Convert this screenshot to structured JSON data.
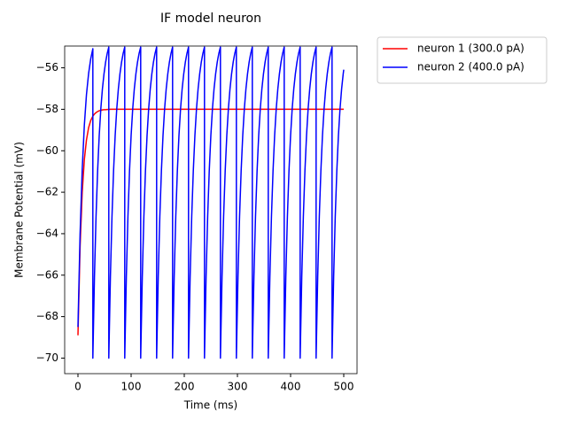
{
  "chart_data": {
    "type": "line",
    "title": "IF model neuron",
    "x_label": "Time (ms)",
    "y_label": "Membrane Potential (mV)",
    "xlim": [
      -25,
      525
    ],
    "ylim": [
      -70.75,
      -54.95
    ],
    "xticks": [
      0,
      100,
      200,
      300,
      400,
      500
    ],
    "yticks": [
      {
        "value": -70,
        "label": "−70"
      },
      {
        "value": -68,
        "label": "−68"
      },
      {
        "value": -66,
        "label": "−66"
      },
      {
        "value": -64,
        "label": "−64"
      },
      {
        "value": -62,
        "label": "−62"
      },
      {
        "value": -60,
        "label": "−60"
      },
      {
        "value": -58,
        "label": "−58"
      },
      {
        "value": -56,
        "label": "−56"
      }
    ],
    "grid": false,
    "legend": "outside upper right",
    "x": [
      0,
      4,
      8,
      12,
      16,
      20,
      24,
      28,
      28,
      31,
      34,
      37,
      40,
      43,
      46,
      49,
      52,
      55,
      58,
      58,
      61,
      64,
      67,
      70,
      73,
      76,
      79,
      82,
      85,
      88,
      88,
      91,
      94,
      97,
      100,
      103,
      106,
      109,
      112,
      115,
      118,
      118,
      121,
      124,
      127,
      130,
      133,
      136,
      139,
      142,
      145,
      148,
      148,
      151,
      154,
      157,
      160,
      163,
      166,
      169,
      172,
      175,
      178,
      178,
      181,
      184,
      187,
      190,
      193,
      196,
      199,
      202,
      205,
      208,
      208,
      211,
      214,
      217,
      220,
      223,
      226,
      229,
      232,
      235,
      238,
      238,
      241,
      244,
      247,
      250,
      253,
      256,
      259,
      262,
      265,
      268,
      268,
      271,
      274,
      277,
      280,
      283,
      286,
      289,
      292,
      295,
      298,
      298,
      301,
      304,
      307,
      310,
      313,
      316,
      319,
      322,
      325,
      328,
      328,
      331,
      334,
      337,
      340,
      343,
      346,
      349,
      352,
      355,
      358,
      358,
      361,
      364,
      367,
      370,
      373,
      376,
      379,
      382,
      385,
      388,
      388,
      391,
      394,
      397,
      400,
      403,
      406,
      409,
      412,
      415,
      418,
      418,
      421,
      424,
      427,
      430,
      433,
      436,
      439,
      442,
      445,
      448,
      448,
      451,
      454,
      457,
      460,
      463,
      466,
      469,
      472,
      475,
      478,
      478,
      481,
      484,
      487,
      490,
      493,
      496,
      499,
      500
    ],
    "series": [
      {
        "name": "neuron 1 (300.0 pA)",
        "color": "#ff0000",
        "values": [
          -68.9,
          -64.61,
          -62.01,
          -60.43,
          -59.48,
          -58.89,
          -58.54,
          -58.33,
          -58.33,
          -58.23,
          -58.16,
          -58.11,
          -58.07,
          -58.05,
          -58.03,
          -58.02,
          -58.02,
          -58.01,
          -58.01,
          -58.01,
          -58,
          -58,
          -58,
          -58,
          -58,
          -58,
          -58,
          -58,
          -58,
          -58,
          -58,
          -58,
          -58,
          -58,
          -58,
          -58,
          -58,
          -58,
          -58,
          -58,
          -58,
          -58,
          -58,
          -58,
          -58,
          -58,
          -58,
          -58,
          -58,
          -58,
          -58,
          -58,
          -58,
          -58,
          -58,
          -58,
          -58,
          -58,
          -58,
          -58,
          -58,
          -58,
          -58,
          -58,
          -58,
          -58,
          -58,
          -58,
          -58,
          -58,
          -58,
          -58,
          -58,
          -58,
          -58,
          -58,
          -58,
          -58,
          -58,
          -58,
          -58,
          -58,
          -58,
          -58,
          -58,
          -58,
          -58,
          -58,
          -58,
          -58,
          -58,
          -58,
          -58,
          -58,
          -58,
          -58,
          -58,
          -58,
          -58,
          -58,
          -58,
          -58,
          -58,
          -58,
          -58,
          -58,
          -58,
          -58,
          -58,
          -58,
          -58,
          -58,
          -58,
          -58,
          -58,
          -58,
          -58,
          -58,
          -58,
          -58,
          -58,
          -58,
          -58,
          -58,
          -58,
          -58,
          -58,
          -58,
          -58,
          -58,
          -58,
          -58,
          -58,
          -58,
          -58,
          -58,
          -58,
          -58,
          -58,
          -58,
          -58,
          -58,
          -58,
          -58,
          -58,
          -58,
          -58,
          -58,
          -58,
          -58,
          -58,
          -58,
          -58,
          -58,
          -58,
          -58,
          -58,
          -58,
          -58,
          -58,
          -58,
          -58,
          -58,
          -58,
          -58,
          -58,
          -58,
          -58,
          -58,
          -58,
          -58,
          -58,
          -58,
          -58,
          -58,
          -58,
          -58,
          -58,
          -58,
          -58,
          -58,
          -58
        ]
      },
      {
        "name": "neuron 2 (400.0 pA)",
        "color": "#0000ff",
        "values": [
          -68.5,
          -64.01,
          -60.91,
          -58.77,
          -57.29,
          -56.28,
          -55.57,
          -55.08,
          -70,
          -66.11,
          -63.18,
          -60.96,
          -59.26,
          -57.98,
          -57.02,
          -56.29,
          -55.73,
          -55.31,
          -55.0,
          -70,
          -66.11,
          -63.18,
          -60.96,
          -59.26,
          -57.98,
          -57.02,
          -56.29,
          -55.73,
          -55.31,
          -55.0,
          -70,
          -66.11,
          -63.18,
          -60.96,
          -59.26,
          -57.98,
          -57.02,
          -56.29,
          -55.73,
          -55.31,
          -55.0,
          -70,
          -66.11,
          -63.18,
          -60.96,
          -59.26,
          -57.98,
          -57.02,
          -56.29,
          -55.73,
          -55.31,
          -55.0,
          -70,
          -66.11,
          -63.18,
          -60.96,
          -59.26,
          -57.98,
          -57.02,
          -56.29,
          -55.73,
          -55.31,
          -55.0,
          -70,
          -66.11,
          -63.18,
          -60.96,
          -59.26,
          -57.98,
          -57.02,
          -56.29,
          -55.73,
          -55.31,
          -55.0,
          -70,
          -66.11,
          -63.18,
          -60.96,
          -59.26,
          -57.98,
          -57.02,
          -56.29,
          -55.73,
          -55.31,
          -55.0,
          -70,
          -66.11,
          -63.18,
          -60.96,
          -59.26,
          -57.98,
          -57.02,
          -56.29,
          -55.73,
          -55.31,
          -55.0,
          -70,
          -66.11,
          -63.18,
          -60.96,
          -59.26,
          -57.98,
          -57.02,
          -56.29,
          -55.73,
          -55.31,
          -55.0,
          -70,
          -66.11,
          -63.18,
          -60.96,
          -59.26,
          -57.98,
          -57.02,
          -56.29,
          -55.73,
          -55.31,
          -55.0,
          -70,
          -66.11,
          -63.18,
          -60.96,
          -59.26,
          -57.98,
          -57.02,
          -56.29,
          -55.73,
          -55.31,
          -55.0,
          -70,
          -66.11,
          -63.18,
          -60.96,
          -59.26,
          -57.98,
          -57.02,
          -56.29,
          -55.73,
          -55.31,
          -55.0,
          -70,
          -66.11,
          -63.18,
          -60.96,
          -59.26,
          -57.98,
          -57.02,
          -56.29,
          -55.73,
          -55.31,
          -55.0,
          -70,
          -66.11,
          -63.18,
          -60.96,
          -59.26,
          -57.98,
          -57.02,
          -56.29,
          -55.73,
          -55.31,
          -55.0,
          -70,
          -66.11,
          -63.18,
          -60.96,
          -59.26,
          -57.98,
          -57.02,
          -56.29,
          -55.73,
          -55.31,
          -55.0,
          -70,
          -66.11,
          -63.18,
          -60.96,
          -59.26,
          -57.98,
          -57.02,
          -56.29,
          -56.09
        ]
      }
    ]
  }
}
